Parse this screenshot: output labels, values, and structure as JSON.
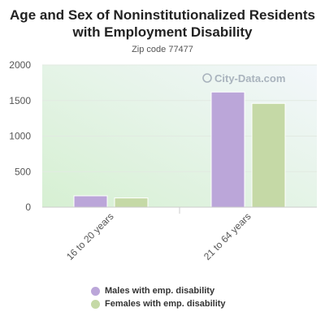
{
  "header": {
    "title": "Age and Sex of Noninstitutionalized Residents with Employment Disability",
    "subtitle": "Zip code 77477"
  },
  "watermark": {
    "icon": "city-data-logo-icon",
    "text": "City-Data.com"
  },
  "chart_data": {
    "type": "bar",
    "categories": [
      "16 to 20 years",
      "21 to 64 years"
    ],
    "series": [
      {
        "name": "Males with emp. disability",
        "values": [
          160,
          1620
        ],
        "color": "#bba6d9"
      },
      {
        "name": "Females with emp. disability",
        "values": [
          130,
          1460
        ],
        "color": "#c5d9a6"
      }
    ],
    "ylim": [
      0,
      2000
    ],
    "yticks": [
      "0",
      "500",
      "1000",
      "1500",
      "2000"
    ],
    "legend_position": "bottom",
    "grid": true
  }
}
